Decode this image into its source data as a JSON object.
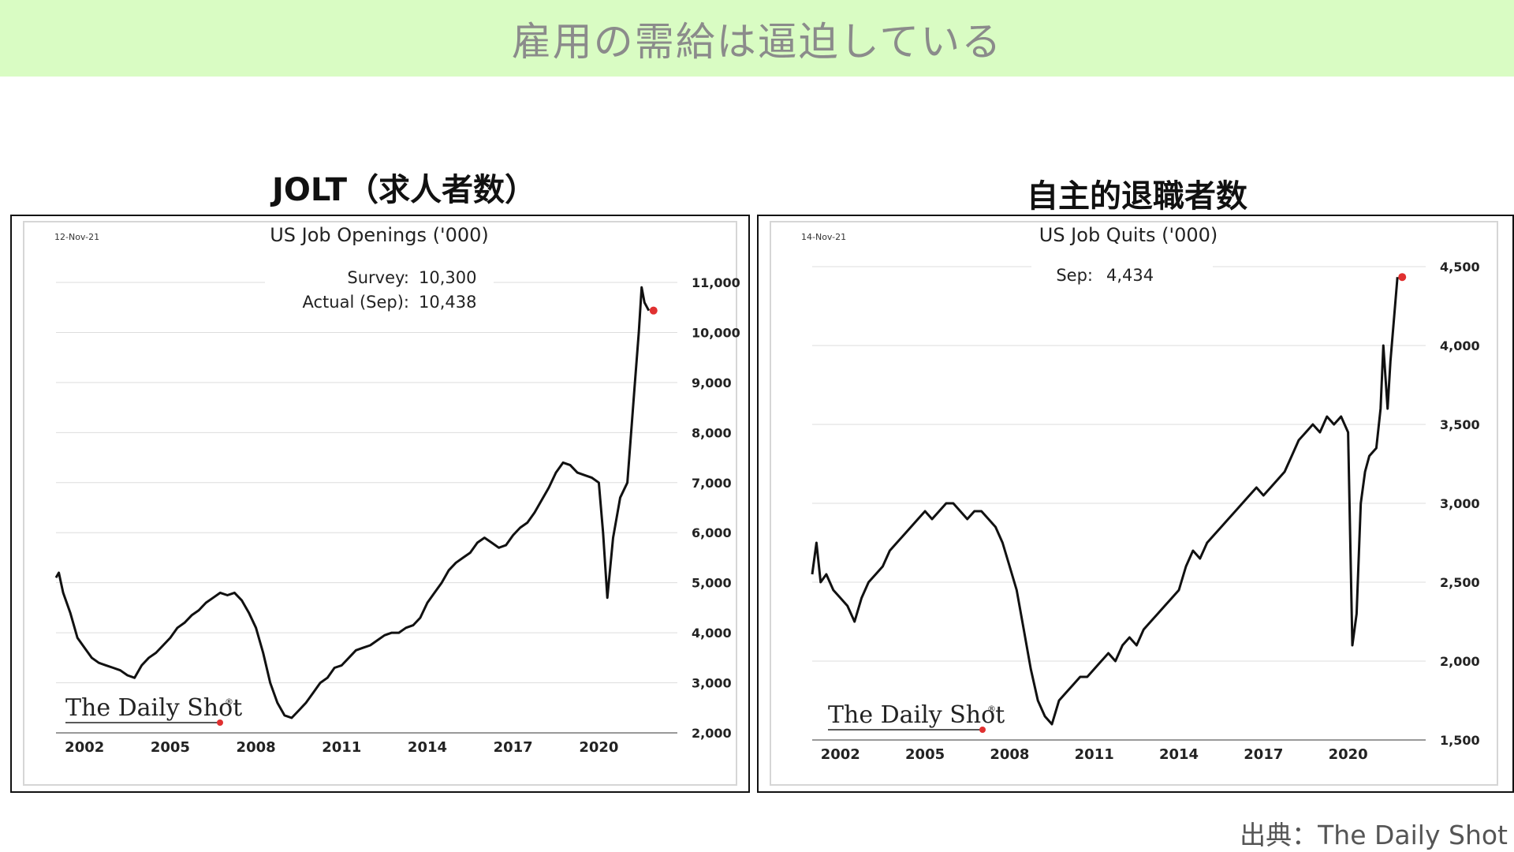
{
  "header": {
    "title": "雇用の需給は逼迫している"
  },
  "panels": [
    {
      "title": "JOLT（求人者数）"
    },
    {
      "title": "自主的退職者数"
    }
  ],
  "source": "出典：The Daily Shot",
  "colors": {
    "banner_bg": "#d9fcc3",
    "line": "#111111",
    "marker": "#e03030"
  },
  "chart_data": [
    {
      "type": "line",
      "title": "US Job Openings ('000)",
      "date_label": "12-Nov-21",
      "annotation": {
        "survey_label": "Survey:",
        "survey_value": "10,300",
        "actual_label": "Actual (Sep):",
        "actual_value": "10,438"
      },
      "watermark": "The Daily Shot",
      "watermark_mark": "®",
      "xlim": [
        2001.0,
        2022.75
      ],
      "ylim": [
        2000,
        11000
      ],
      "y_axis_side": "right",
      "grid": true,
      "x_ticks": [
        2002,
        2005,
        2008,
        2011,
        2014,
        2017,
        2020
      ],
      "x_tick_labels": [
        "2002",
        "2005",
        "2008",
        "2011",
        "2014",
        "2017",
        "2020"
      ],
      "y_ticks": [
        2000,
        3000,
        4000,
        5000,
        6000,
        7000,
        8000,
        9000,
        10000,
        11000
      ],
      "y_tick_labels": [
        "2,000",
        "3,000",
        "4,000",
        "5,000",
        "6,000",
        "7,000",
        "8,000",
        "9,000",
        "10,000",
        "11,000"
      ],
      "series": [
        {
          "x": [
            2001.0,
            2001.1,
            2001.25,
            2001.5,
            2001.75,
            2002.0,
            2002.25,
            2002.5,
            2002.75,
            2003.0,
            2003.25,
            2003.5,
            2003.75,
            2004.0,
            2004.25,
            2004.5,
            2004.75,
            2005.0,
            2005.25,
            2005.5,
            2005.75,
            2006.0,
            2006.25,
            2006.5,
            2006.75,
            2007.0,
            2007.25,
            2007.5,
            2007.75,
            2008.0,
            2008.25,
            2008.5,
            2008.75,
            2009.0,
            2009.25,
            2009.5,
            2009.75,
            2010.0,
            2010.25,
            2010.5,
            2010.75,
            2011.0,
            2011.25,
            2011.5,
            2011.75,
            2012.0,
            2012.25,
            2012.5,
            2012.75,
            2013.0,
            2013.25,
            2013.5,
            2013.75,
            2014.0,
            2014.25,
            2014.5,
            2014.75,
            2015.0,
            2015.25,
            2015.5,
            2015.75,
            2016.0,
            2016.25,
            2016.5,
            2016.75,
            2017.0,
            2017.25,
            2017.5,
            2017.75,
            2018.0,
            2018.25,
            2018.5,
            2018.75,
            2019.0,
            2019.25,
            2019.5,
            2019.75,
            2020.0,
            2020.15,
            2020.3,
            2020.5,
            2020.75,
            2021.0,
            2021.25,
            2021.4,
            2021.5,
            2021.6,
            2021.75
          ],
          "y": [
            5100,
            5200,
            4800,
            4400,
            3900,
            3700,
            3500,
            3400,
            3350,
            3300,
            3250,
            3150,
            3100,
            3350,
            3500,
            3600,
            3750,
            3900,
            4100,
            4200,
            4350,
            4450,
            4600,
            4700,
            4800,
            4750,
            4800,
            4650,
            4400,
            4100,
            3600,
            3000,
            2600,
            2350,
            2300,
            2450,
            2600,
            2800,
            3000,
            3100,
            3300,
            3350,
            3500,
            3650,
            3700,
            3750,
            3850,
            3950,
            4000,
            4000,
            4100,
            4150,
            4300,
            4600,
            4800,
            5000,
            5250,
            5400,
            5500,
            5600,
            5800,
            5900,
            5800,
            5700,
            5750,
            5950,
            6100,
            6200,
            6400,
            6650,
            6900,
            7200,
            7400,
            7350,
            7200,
            7150,
            7100,
            7000,
            6000,
            4700,
            5900,
            6700,
            7000,
            8900,
            10000,
            10900,
            10600,
            10438
          ]
        }
      ],
      "last_point_highlight": true
    },
    {
      "type": "line",
      "title": "US Job Quits ('000)",
      "date_label": "14-Nov-21",
      "annotation": {
        "label": "Sep:",
        "value": "4,434"
      },
      "watermark": "The Daily Shot",
      "watermark_mark": "®",
      "xlim": [
        2001.0,
        2022.75
      ],
      "ylim": [
        1500,
        4500
      ],
      "y_axis_side": "right",
      "grid": true,
      "x_ticks": [
        2002,
        2005,
        2008,
        2011,
        2014,
        2017,
        2020
      ],
      "x_tick_labels": [
        "2002",
        "2005",
        "2008",
        "2011",
        "2014",
        "2017",
        "2020"
      ],
      "y_ticks": [
        1500,
        2000,
        2500,
        3000,
        3500,
        4000,
        4500
      ],
      "y_tick_labels": [
        "1,500",
        "2,000",
        "2,500",
        "3,000",
        "3,500",
        "4,000",
        "4,500"
      ],
      "series": [
        {
          "x": [
            2001.0,
            2001.15,
            2001.3,
            2001.5,
            2001.75,
            2002.0,
            2002.25,
            2002.5,
            2002.75,
            2003.0,
            2003.25,
            2003.5,
            2003.75,
            2004.0,
            2004.25,
            2004.5,
            2004.75,
            2005.0,
            2005.25,
            2005.5,
            2005.75,
            2006.0,
            2006.25,
            2006.5,
            2006.75,
            2007.0,
            2007.25,
            2007.5,
            2007.75,
            2008.0,
            2008.25,
            2008.5,
            2008.75,
            2009.0,
            2009.25,
            2009.5,
            2009.75,
            2010.0,
            2010.25,
            2010.5,
            2010.75,
            2011.0,
            2011.25,
            2011.5,
            2011.75,
            2012.0,
            2012.25,
            2012.5,
            2012.75,
            2013.0,
            2013.25,
            2013.5,
            2013.75,
            2014.0,
            2014.25,
            2014.5,
            2014.75,
            2015.0,
            2015.25,
            2015.5,
            2015.75,
            2016.0,
            2016.25,
            2016.5,
            2016.75,
            2017.0,
            2017.25,
            2017.5,
            2017.75,
            2018.0,
            2018.25,
            2018.5,
            2018.75,
            2019.0,
            2019.25,
            2019.5,
            2019.75,
            2020.0,
            2020.15,
            2020.3,
            2020.45,
            2020.6,
            2020.75,
            2021.0,
            2021.15,
            2021.25,
            2021.4,
            2021.5,
            2021.75
          ],
          "y": [
            2550,
            2750,
            2500,
            2550,
            2450,
            2400,
            2350,
            2250,
            2400,
            2500,
            2550,
            2600,
            2700,
            2750,
            2800,
            2850,
            2900,
            2950,
            2900,
            2950,
            3000,
            3000,
            2950,
            2900,
            2950,
            2950,
            2900,
            2850,
            2750,
            2600,
            2450,
            2200,
            1950,
            1750,
            1650,
            1600,
            1750,
            1800,
            1850,
            1900,
            1900,
            1950,
            2000,
            2050,
            2000,
            2100,
            2150,
            2100,
            2200,
            2250,
            2300,
            2350,
            2400,
            2450,
            2600,
            2700,
            2650,
            2750,
            2800,
            2850,
            2900,
            2950,
            3000,
            3050,
            3100,
            3050,
            3100,
            3150,
            3200,
            3300,
            3400,
            3450,
            3500,
            3450,
            3550,
            3500,
            3550,
            3450,
            2100,
            2300,
            3000,
            3200,
            3300,
            3350,
            3600,
            4000,
            3600,
            3900,
            4434
          ]
        }
      ],
      "last_point_highlight": true
    }
  ]
}
